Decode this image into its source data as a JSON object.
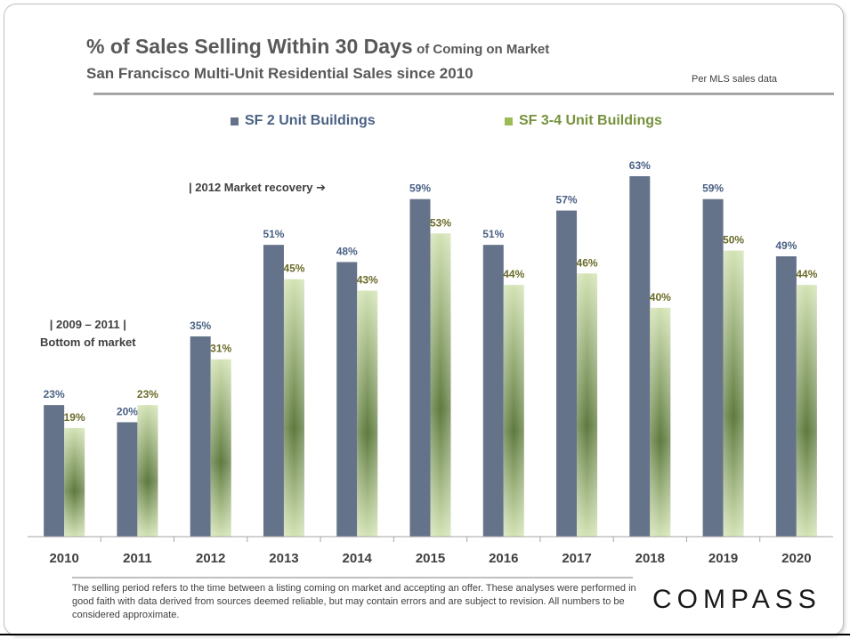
{
  "title_main": "% of Sales Selling Within 30 Days",
  "title_suffix": "of Coming on Market",
  "subtitle": "San Francisco Multi-Unit  Residential Sales since 2010",
  "source_note": "Per MLS sales data",
  "annotations": {
    "recovery": "|  2012 Market recovery ➔",
    "bottom_line1": "| 2009 – 2011 |",
    "bottom_line2": "Bottom of market"
  },
  "footnote": "The selling period refers to the time between a listing coming on market and accepting an offer. These analyses were performed in good faith with data derived from sources deemed reliable, but may contain errors and are subject to revision. All numbers to be considered  approximate.",
  "brand": "COMPASS",
  "colors": {
    "series1": "#65738a",
    "series2_light": "#d3e3b4",
    "series2_dark": "#5e7a3e",
    "series1_label": "#4a6184",
    "series2_label": "#6b6b2a"
  },
  "chart_data": {
    "type": "bar",
    "title": "% of Sales Selling Within 30 Days of Coming on Market",
    "subtitle": "San Francisco Multi-Unit  Residential Sales since 2010",
    "categories": [
      "2010",
      "2011",
      "2012",
      "2013",
      "2014",
      "2015",
      "2016",
      "2017",
      "2018",
      "2019",
      "2020"
    ],
    "series": [
      {
        "name": "SF 2 Unit Buildings",
        "values": [
          23,
          20,
          35,
          51,
          48,
          59,
          51,
          57,
          63,
          59,
          49
        ]
      },
      {
        "name": "SF 3-4 Unit Buildings",
        "values": [
          19,
          23,
          31,
          45,
          43,
          53,
          44,
          46,
          40,
          50,
          44
        ]
      }
    ],
    "value_suffix": "%",
    "ylim": [
      0,
      63
    ],
    "xlabel": "",
    "ylabel": "",
    "grid": false,
    "legend": "top"
  }
}
